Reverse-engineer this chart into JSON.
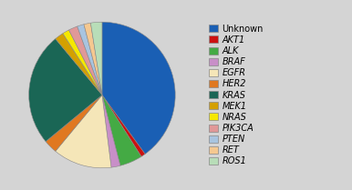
{
  "labels": [
    "Unknown",
    "AKT1",
    "ALK",
    "BRAF",
    "EGFR",
    "HER2",
    "KRAS",
    "MEK1",
    "NRAS",
    "PIK3CA",
    "PTEN",
    "RET",
    "ROS1"
  ],
  "values": [
    40,
    1,
    5,
    2,
    13,
    3,
    25,
    2,
    1.5,
    2,
    1.5,
    1.5,
    2.5
  ],
  "colors": [
    "#1a5fb4",
    "#cc1111",
    "#44aa44",
    "#c88fc8",
    "#f5e6b8",
    "#e07820",
    "#1a6655",
    "#d4a000",
    "#f5e800",
    "#e09898",
    "#a8c4e0",
    "#f5c890",
    "#b8ddb8"
  ],
  "background_color": "#d4d4d4",
  "startangle": 90,
  "legend_fontsize": 7.0
}
